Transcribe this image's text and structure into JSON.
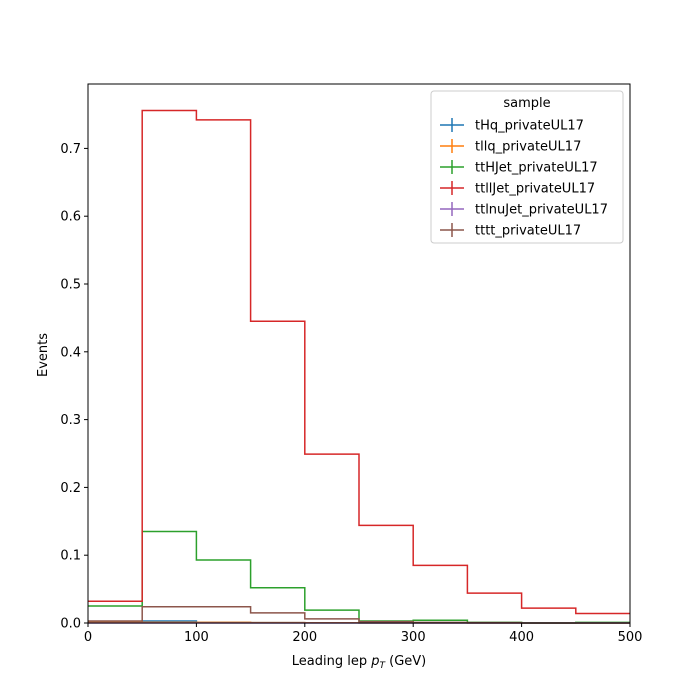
{
  "chart_data": {
    "type": "line",
    "xlabel_main": "Leading lep ",
    "xlabel_var": "p",
    "xlabel_sub": "T",
    "xlabel_unit": " (GeV)",
    "ylabel": "Events",
    "xlim": [
      0,
      500
    ],
    "ylim": [
      0,
      0.795
    ],
    "x_ticks": [
      "0",
      "100",
      "200",
      "300",
      "400",
      "500"
    ],
    "y_ticks": [
      "0.0",
      "0.1",
      "0.2",
      "0.3",
      "0.4",
      "0.5",
      "0.6",
      "0.7"
    ],
    "bin_edges": [
      0,
      50,
      100,
      150,
      200,
      250,
      300,
      350,
      400,
      450,
      500
    ],
    "legend_title": "sample",
    "legend_position": "top-right",
    "grid": false,
    "series": [
      {
        "name": "tHq_privateUL17",
        "color": "#1f77b4",
        "values": [
          0.001,
          0.003,
          0.001,
          0.0005,
          0.0003,
          0.0002,
          0.0001,
          0.0,
          0.0,
          0.0
        ]
      },
      {
        "name": "tllq_privateUL17",
        "color": "#ff7f0e",
        "values": [
          0.001,
          0.001,
          0.001,
          0.0005,
          0.0003,
          0.0002,
          0.0001,
          0.0,
          0.0,
          0.0
        ]
      },
      {
        "name": "ttHJet_privateUL17",
        "color": "#2ca02c",
        "values": [
          0.025,
          0.135,
          0.093,
          0.052,
          0.019,
          0.003,
          0.004,
          0.001,
          0.0,
          0.001
        ]
      },
      {
        "name": "ttllJet_privateUL17",
        "color": "#d62728",
        "values": [
          0.032,
          0.756,
          0.742,
          0.445,
          0.249,
          0.144,
          0.085,
          0.044,
          0.022,
          0.014
        ]
      },
      {
        "name": "ttlnuJet_privateUL17",
        "color": "#9467bd",
        "values": [
          0.0,
          0.0,
          0.0,
          0.0,
          0.0,
          0.0,
          0.0,
          0.0,
          0.0,
          0.0
        ]
      },
      {
        "name": "tttt_privateUL17",
        "color": "#8c564b",
        "values": [
          0.003,
          0.024,
          0.024,
          0.015,
          0.006,
          0.002,
          0.001,
          0.0005,
          0.0,
          0.0
        ]
      }
    ]
  }
}
